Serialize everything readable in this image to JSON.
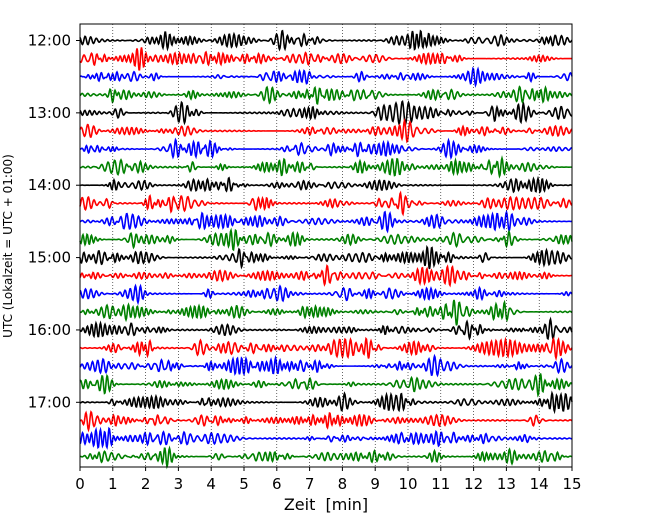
{
  "chart_data": {
    "type": "line",
    "title": "",
    "xlabel": "Zeit  [min]",
    "ylabel": "UTC (Lokalzeit = UTC + 01:00)",
    "xlim": [
      0,
      15
    ],
    "x_ticks": [
      0,
      1,
      2,
      3,
      4,
      5,
      6,
      7,
      8,
      9,
      10,
      11,
      12,
      13,
      14,
      15
    ],
    "x_tick_labels": [
      "0",
      "1",
      "2",
      "3",
      "4",
      "5",
      "6",
      "7",
      "8",
      "9",
      "10",
      "11",
      "12",
      "13",
      "14",
      "15"
    ],
    "y_tick_labels": [
      "12:00",
      "13:00",
      "14:00",
      "15:00",
      "16:00",
      "17:00"
    ],
    "y_tick_rows": [
      0,
      4,
      8,
      12,
      16,
      20
    ],
    "row_start_times": [
      "12:00",
      "12:15",
      "12:30",
      "12:45",
      "13:00",
      "13:15",
      "13:30",
      "13:45",
      "14:00",
      "14:15",
      "14:30",
      "14:45",
      "15:00",
      "15:15",
      "15:30",
      "15:45",
      "16:00",
      "16:15",
      "16:30",
      "16:45",
      "17:00",
      "17:15",
      "17:30",
      "17:45"
    ],
    "row_minutes": 15,
    "trace_colors": [
      "#000000",
      "#ff0000",
      "#0000ff",
      "#008000"
    ],
    "grid": "x-dotted",
    "legend": "none"
  }
}
